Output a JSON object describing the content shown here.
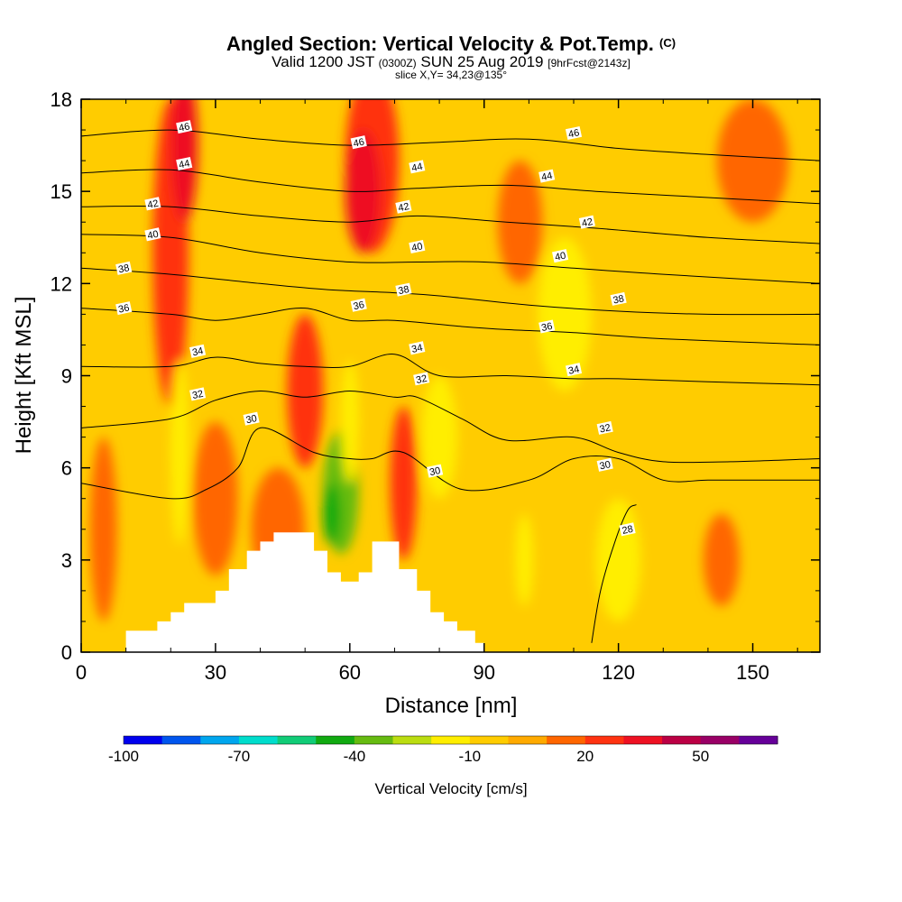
{
  "chart_data": {
    "type": "heatmap",
    "title": "Angled Section: Vertical Velocity & Pot.Temp.",
    "title_unit": "(C)",
    "subtitle_main": "Valid 1200 JST",
    "subtitle_utc": "(0300Z)",
    "subtitle_date": "SUN 25 Aug 2019",
    "subtitle_fcst": "[9hrFcst@2143z]",
    "slice_text": "slice X,Y= 34,23@135°",
    "xlabel": "Distance [nm]",
    "ylabel": "Height [Kft MSL]",
    "xlim": [
      0,
      165
    ],
    "ylim": [
      0,
      18
    ],
    "x_ticks": [
      0,
      30,
      60,
      90,
      120,
      150
    ],
    "y_ticks": [
      0,
      3,
      6,
      9,
      12,
      15,
      18
    ],
    "colorbar": {
      "label": "Vertical Velocity [cm/s]",
      "tick_values": [
        -100,
        -70,
        -40,
        -10,
        20,
        50
      ],
      "tick_labels": [
        "-100",
        "-70",
        "-40",
        "-10",
        "20",
        "50"
      ],
      "bin_min": -100,
      "bin_width": 10,
      "colors": [
        "#0000ee",
        "#0055ee",
        "#00a6ee",
        "#00ddcc",
        "#11cc77",
        "#11aa11",
        "#66bb11",
        "#bbdd11",
        "#ffee00",
        "#ffcc00",
        "#ffaa00",
        "#ff6600",
        "#ff3311",
        "#ee1122",
        "#bb0044",
        "#990066",
        "#660099"
      ]
    },
    "background_velocity": -5,
    "velocity_cells": [
      {
        "x": 20,
        "y": 13,
        "rx": 4,
        "ry": 5,
        "value": 25
      },
      {
        "x": 23,
        "y": 16.5,
        "rx": 3,
        "ry": 2.5,
        "value": 35
      },
      {
        "x": 65,
        "y": 16,
        "rx": 6,
        "ry": 3,
        "value": 25
      },
      {
        "x": 63,
        "y": 15,
        "rx": 4,
        "ry": 2,
        "value": 30
      },
      {
        "x": 50,
        "y": 8.5,
        "rx": 4,
        "ry": 2.5,
        "value": 20
      },
      {
        "x": 72,
        "y": 5.5,
        "rx": 3,
        "ry": 2.5,
        "value": 25
      },
      {
        "x": 58,
        "y": 5.2,
        "rx": 4,
        "ry": 2,
        "value": -35
      },
      {
        "x": 56,
        "y": 4.5,
        "rx": 2,
        "ry": 1,
        "value": -45
      },
      {
        "x": 60,
        "y": 7.5,
        "rx": 2,
        "ry": 2,
        "value": -15
      },
      {
        "x": 143,
        "y": 3,
        "rx": 4,
        "ry": 1.5,
        "value": 15
      },
      {
        "x": 120,
        "y": 3,
        "rx": 5,
        "ry": 2,
        "value": -15
      },
      {
        "x": 99,
        "y": 3,
        "rx": 2,
        "ry": 1.5,
        "value": -15
      },
      {
        "x": 44,
        "y": 4,
        "rx": 6,
        "ry": 2,
        "value": 15
      },
      {
        "x": 30,
        "y": 5,
        "rx": 5,
        "ry": 2.5,
        "value": 15
      },
      {
        "x": 22,
        "y": 6.5,
        "rx": 2,
        "ry": 3,
        "value": -15
      },
      {
        "x": 80,
        "y": 7,
        "rx": 4,
        "ry": 2,
        "value": -15
      },
      {
        "x": 108,
        "y": 11,
        "rx": 6,
        "ry": 2.5,
        "value": -15
      },
      {
        "x": 98,
        "y": 14,
        "rx": 5,
        "ry": 2,
        "value": 15
      },
      {
        "x": 150,
        "y": 16,
        "rx": 8,
        "ry": 2,
        "value": 15
      },
      {
        "x": 5,
        "y": 4,
        "rx": 3,
        "ry": 3,
        "value": 15
      }
    ],
    "terrain": [
      [
        10,
        0.3
      ],
      [
        10,
        0.7
      ],
      [
        17,
        0.7
      ],
      [
        17,
        1.0
      ],
      [
        20,
        1.0
      ],
      [
        20,
        1.3
      ],
      [
        23,
        1.3
      ],
      [
        23,
        1.6
      ],
      [
        30,
        1.6
      ],
      [
        30,
        2.0
      ],
      [
        33,
        2.0
      ],
      [
        33,
        2.7
      ],
      [
        37,
        2.7
      ],
      [
        37,
        3.3
      ],
      [
        40,
        3.3
      ],
      [
        40,
        3.6
      ],
      [
        43,
        3.6
      ],
      [
        43,
        3.9
      ],
      [
        47,
        3.9
      ],
      [
        47,
        3.9
      ],
      [
        52,
        3.9
      ],
      [
        52,
        3.3
      ],
      [
        55,
        3.3
      ],
      [
        55,
        2.6
      ],
      [
        58,
        2.6
      ],
      [
        58,
        2.3
      ],
      [
        62,
        2.3
      ],
      [
        62,
        2.6
      ],
      [
        65,
        2.6
      ],
      [
        65,
        3.6
      ],
      [
        71,
        3.6
      ],
      [
        71,
        2.7
      ],
      [
        75,
        2.7
      ],
      [
        75,
        2.0
      ],
      [
        78,
        2.0
      ],
      [
        78,
        1.3
      ],
      [
        81,
        1.3
      ],
      [
        81,
        1.0
      ],
      [
        84,
        1.0
      ],
      [
        84,
        0.7
      ],
      [
        88,
        0.7
      ],
      [
        88,
        0.3
      ],
      [
        90,
        0.3
      ]
    ],
    "theta_contours": [
      {
        "level": 28,
        "labeled": true,
        "points": [
          [
            114,
            0.3
          ],
          [
            116,
            2
          ],
          [
            119,
            3.5
          ],
          [
            122,
            4.6
          ],
          [
            124,
            4.8
          ]
        ]
      },
      {
        "level": 30,
        "labeled": true,
        "points": [
          [
            0,
            5.5
          ],
          [
            20,
            5
          ],
          [
            28,
            5.3
          ],
          [
            35,
            6
          ],
          [
            40,
            7.3
          ],
          [
            52,
            6.5
          ],
          [
            60,
            6.3
          ],
          [
            65,
            6.3
          ],
          [
            72,
            6.5
          ],
          [
            85,
            5.3
          ],
          [
            100,
            5.6
          ],
          [
            110,
            6.3
          ],
          [
            120,
            6.3
          ],
          [
            130,
            5.6
          ],
          [
            140,
            5.6
          ],
          [
            150,
            5.6
          ],
          [
            165,
            5.6
          ]
        ]
      },
      {
        "level": 32,
        "labeled": true,
        "points": [
          [
            0,
            7.3
          ],
          [
            20,
            7.6
          ],
          [
            30,
            8.2
          ],
          [
            40,
            8.5
          ],
          [
            50,
            8.3
          ],
          [
            60,
            8.5
          ],
          [
            70,
            8.3
          ],
          [
            75,
            8.3
          ],
          [
            85,
            7.6
          ],
          [
            95,
            6.9
          ],
          [
            110,
            7.0
          ],
          [
            120,
            6.5
          ],
          [
            130,
            6.2
          ],
          [
            145,
            6.2
          ],
          [
            165,
            6.3
          ]
        ]
      },
      {
        "level": 34,
        "labeled": true,
        "points": [
          [
            0,
            9.3
          ],
          [
            20,
            9.3
          ],
          [
            30,
            9.6
          ],
          [
            40,
            9.4
          ],
          [
            50,
            9.3
          ],
          [
            60,
            9.3
          ],
          [
            70,
            9.7
          ],
          [
            80,
            9.0
          ],
          [
            95,
            9.0
          ],
          [
            110,
            8.9
          ],
          [
            120,
            8.9
          ],
          [
            140,
            8.8
          ],
          [
            165,
            8.7
          ]
        ]
      },
      {
        "level": 36,
        "labeled": true,
        "points": [
          [
            0,
            11.2
          ],
          [
            20,
            11.0
          ],
          [
            30,
            10.8
          ],
          [
            40,
            11.0
          ],
          [
            50,
            11.2
          ],
          [
            60,
            10.8
          ],
          [
            70,
            10.8
          ],
          [
            85,
            10.6
          ],
          [
            95,
            10.5
          ],
          [
            110,
            10.4
          ],
          [
            130,
            10.2
          ],
          [
            165,
            10.0
          ]
        ]
      },
      {
        "level": 38,
        "labeled": true,
        "points": [
          [
            0,
            12.5
          ],
          [
            20,
            12.3
          ],
          [
            40,
            12.0
          ],
          [
            55,
            11.8
          ],
          [
            70,
            11.7
          ],
          [
            80,
            11.6
          ],
          [
            100,
            11.3
          ],
          [
            120,
            11.1
          ],
          [
            140,
            11.0
          ],
          [
            165,
            11.0
          ]
        ]
      },
      {
        "level": 40,
        "labeled": true,
        "points": [
          [
            0,
            13.6
          ],
          [
            20,
            13.5
          ],
          [
            40,
            13.0
          ],
          [
            60,
            12.7
          ],
          [
            75,
            12.7
          ],
          [
            90,
            12.7
          ],
          [
            110,
            12.5
          ],
          [
            130,
            12.3
          ],
          [
            165,
            12.0
          ]
        ]
      },
      {
        "level": 42,
        "labeled": true,
        "points": [
          [
            0,
            14.5
          ],
          [
            20,
            14.5
          ],
          [
            40,
            14.2
          ],
          [
            60,
            14.0
          ],
          [
            75,
            14.2
          ],
          [
            95,
            14.0
          ],
          [
            115,
            13.8
          ],
          [
            140,
            13.5
          ],
          [
            165,
            13.3
          ]
        ]
      },
      {
        "level": 44,
        "labeled": true,
        "points": [
          [
            0,
            15.6
          ],
          [
            20,
            15.7
          ],
          [
            40,
            15.3
          ],
          [
            60,
            15.0
          ],
          [
            75,
            15.1
          ],
          [
            95,
            15.2
          ],
          [
            115,
            15.0
          ],
          [
            140,
            14.8
          ],
          [
            165,
            14.6
          ]
        ]
      },
      {
        "level": 46,
        "labeled": true,
        "points": [
          [
            0,
            16.8
          ],
          [
            20,
            17.0
          ],
          [
            40,
            16.7
          ],
          [
            60,
            16.5
          ],
          [
            80,
            16.6
          ],
          [
            100,
            16.7
          ],
          [
            120,
            16.4
          ],
          [
            140,
            16.2
          ],
          [
            165,
            16.0
          ]
        ]
      }
    ],
    "contour_labels": [
      {
        "text": "46",
        "x": 23,
        "y": 17.1
      },
      {
        "text": "44",
        "x": 23,
        "y": 15.9
      },
      {
        "text": "42",
        "x": 16,
        "y": 14.6
      },
      {
        "text": "40",
        "x": 16,
        "y": 13.6
      },
      {
        "text": "38",
        "x": 9.5,
        "y": 12.5
      },
      {
        "text": "36",
        "x": 9.5,
        "y": 11.2
      },
      {
        "text": "34",
        "x": 26,
        "y": 9.8
      },
      {
        "text": "32",
        "x": 26,
        "y": 8.4
      },
      {
        "text": "30",
        "x": 38,
        "y": 7.6
      },
      {
        "text": "46",
        "x": 62,
        "y": 16.6
      },
      {
        "text": "44",
        "x": 75,
        "y": 15.8
      },
      {
        "text": "42",
        "x": 72,
        "y": 14.5
      },
      {
        "text": "40",
        "x": 75,
        "y": 13.2
      },
      {
        "text": "38",
        "x": 72,
        "y": 11.8
      },
      {
        "text": "36",
        "x": 62,
        "y": 11.3
      },
      {
        "text": "34",
        "x": 75,
        "y": 9.9
      },
      {
        "text": "32",
        "x": 76,
        "y": 8.9
      },
      {
        "text": "30",
        "x": 79,
        "y": 5.9
      },
      {
        "text": "46",
        "x": 110,
        "y": 16.9
      },
      {
        "text": "44",
        "x": 104,
        "y": 15.5
      },
      {
        "text": "42",
        "x": 113,
        "y": 14.0
      },
      {
        "text": "40",
        "x": 107,
        "y": 12.9
      },
      {
        "text": "38",
        "x": 120,
        "y": 11.5
      },
      {
        "text": "36",
        "x": 104,
        "y": 10.6
      },
      {
        "text": "34",
        "x": 110,
        "y": 9.2
      },
      {
        "text": "32",
        "x": 117,
        "y": 7.3
      },
      {
        "text": "30",
        "x": 117,
        "y": 6.1
      },
      {
        "text": "28",
        "x": 122,
        "y": 4.0
      }
    ]
  }
}
